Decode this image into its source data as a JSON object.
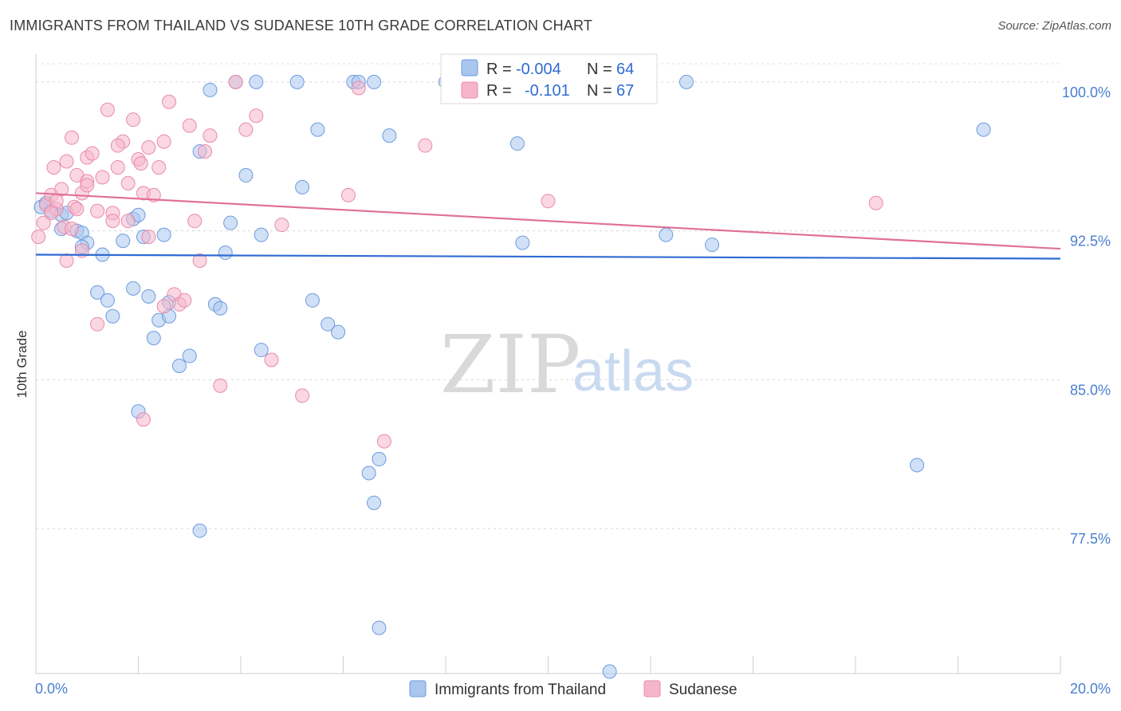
{
  "header": {
    "title": "IMMIGRANTS FROM THAILAND VS SUDANESE 10TH GRADE CORRELATION CHART",
    "source": "Source: ZipAtlas.com"
  },
  "watermark": {
    "zip": "ZIP",
    "atlas": "atlas"
  },
  "colors": {
    "blue": "#a9c6ee",
    "blue_stroke": "#6d9be0",
    "blue_line": "#2f6bd3",
    "pink": "#f5b6cb",
    "pink_stroke": "#e98aab",
    "pink_line": "#e0709a"
  },
  "chart_data": {
    "type": "scatter",
    "title": "IMMIGRANTS FROM THAILAND VS SUDANESE 10TH GRADE CORRELATION CHART",
    "xlabel": "",
    "ylabel": "10th Grade",
    "xlim": [
      0,
      20
    ],
    "ylim": [
      70.2,
      101.4
    ],
    "y_ticks": [
      77.5,
      85.0,
      92.5,
      100.0
    ],
    "y_tick_labels": [
      "77.5%",
      "85.0%",
      "92.5%",
      "100.0%"
    ],
    "x_tick_labels": [
      "0.0%",
      "20.0%"
    ],
    "legend": [
      {
        "name": "Immigrants from Thailand",
        "r_label": "R =",
        "r": "-0.004",
        "n_label": "N =",
        "n": "64"
      },
      {
        "name": "Sudanese",
        "r_label": "R =",
        "r": "-0.101",
        "n_label": "N =",
        "n": "67"
      }
    ],
    "series": [
      {
        "name": "Immigrants from Thailand",
        "trend": {
          "x": [
            0,
            20
          ],
          "y": [
            91.3,
            91.1
          ]
        },
        "points": [
          [
            0.1,
            93.7
          ],
          [
            0.2,
            93.9
          ],
          [
            0.3,
            93.5
          ],
          [
            0.5,
            93.3
          ],
          [
            0.5,
            92.6
          ],
          [
            0.8,
            92.5
          ],
          [
            0.9,
            92.4
          ],
          [
            1.0,
            91.9
          ],
          [
            1.3,
            91.3
          ],
          [
            1.2,
            89.4
          ],
          [
            1.4,
            89.0
          ],
          [
            1.5,
            88.2
          ],
          [
            1.7,
            92.0
          ],
          [
            1.9,
            89.6
          ],
          [
            1.9,
            93.1
          ],
          [
            2.0,
            93.3
          ],
          [
            2.1,
            92.2
          ],
          [
            2.2,
            89.2
          ],
          [
            2.3,
            87.1
          ],
          [
            2.4,
            88.0
          ],
          [
            2.5,
            92.3
          ],
          [
            2.6,
            88.2
          ],
          [
            2.6,
            88.9
          ],
          [
            2.8,
            85.7
          ],
          [
            3.0,
            86.2
          ],
          [
            3.2,
            96.5
          ],
          [
            3.4,
            99.6
          ],
          [
            3.5,
            88.8
          ],
          [
            3.6,
            88.6
          ],
          [
            3.7,
            91.4
          ],
          [
            3.8,
            92.9
          ],
          [
            3.9,
            100.0
          ],
          [
            4.1,
            95.3
          ],
          [
            4.4,
            92.3
          ],
          [
            4.3,
            100.0
          ],
          [
            4.4,
            86.5
          ],
          [
            5.1,
            100.0
          ],
          [
            5.2,
            94.7
          ],
          [
            5.4,
            89.0
          ],
          [
            5.5,
            97.6
          ],
          [
            5.7,
            87.8
          ],
          [
            5.9,
            87.4
          ],
          [
            6.2,
            100.0
          ],
          [
            6.3,
            100.0
          ],
          [
            6.6,
            100.0
          ],
          [
            6.5,
            80.3
          ],
          [
            6.6,
            78.8
          ],
          [
            6.7,
            81.0
          ],
          [
            6.7,
            72.5
          ],
          [
            6.9,
            97.3
          ],
          [
            8.0,
            100.0
          ],
          [
            9.4,
            96.9
          ],
          [
            9.5,
            91.9
          ],
          [
            11.4,
            100.0
          ],
          [
            12.3,
            92.3
          ],
          [
            12.7,
            100.0
          ],
          [
            13.2,
            91.8
          ],
          [
            17.2,
            80.7
          ],
          [
            18.5,
            97.6
          ],
          [
            2.0,
            83.4
          ],
          [
            3.2,
            77.4
          ],
          [
            11.2,
            70.3
          ],
          [
            0.9,
            91.7
          ],
          [
            0.6,
            93.4
          ]
        ]
      },
      {
        "name": "Sudanese",
        "trend": {
          "x": [
            0,
            20
          ],
          "y": [
            94.4,
            91.6
          ]
        },
        "points": [
          [
            0.05,
            92.2
          ],
          [
            0.15,
            92.9
          ],
          [
            0.2,
            93.8
          ],
          [
            0.3,
            94.3
          ],
          [
            0.35,
            95.7
          ],
          [
            0.4,
            93.6
          ],
          [
            0.5,
            94.6
          ],
          [
            0.55,
            92.7
          ],
          [
            0.6,
            96.0
          ],
          [
            0.7,
            97.2
          ],
          [
            0.75,
            93.7
          ],
          [
            0.8,
            95.3
          ],
          [
            0.9,
            94.4
          ],
          [
            1.0,
            95.0
          ],
          [
            1.0,
            96.2
          ],
          [
            1.1,
            96.4
          ],
          [
            1.2,
            93.5
          ],
          [
            1.3,
            95.2
          ],
          [
            1.4,
            98.6
          ],
          [
            1.5,
            93.4
          ],
          [
            1.6,
            95.7
          ],
          [
            1.7,
            97.0
          ],
          [
            1.8,
            94.9
          ],
          [
            1.9,
            98.1
          ],
          [
            2.0,
            96.1
          ],
          [
            2.05,
            95.9
          ],
          [
            2.1,
            94.4
          ],
          [
            2.2,
            96.7
          ],
          [
            2.3,
            94.3
          ],
          [
            2.4,
            95.7
          ],
          [
            2.5,
            97.0
          ],
          [
            2.6,
            99.0
          ],
          [
            2.7,
            89.3
          ],
          [
            2.8,
            88.8
          ],
          [
            2.9,
            89.0
          ],
          [
            3.0,
            97.8
          ],
          [
            3.1,
            93.0
          ],
          [
            3.2,
            91.0
          ],
          [
            3.3,
            96.5
          ],
          [
            3.4,
            97.3
          ],
          [
            3.6,
            84.7
          ],
          [
            3.9,
            100.0
          ],
          [
            4.1,
            97.6
          ],
          [
            4.3,
            98.3
          ],
          [
            4.6,
            86.0
          ],
          [
            4.8,
            92.8
          ],
          [
            5.2,
            84.2
          ],
          [
            6.1,
            94.3
          ],
          [
            6.3,
            99.7
          ],
          [
            6.8,
            81.9
          ],
          [
            7.6,
            96.8
          ],
          [
            10.0,
            94.0
          ],
          [
            16.4,
            93.9
          ],
          [
            0.9,
            91.5
          ],
          [
            1.2,
            87.8
          ],
          [
            0.6,
            91.0
          ],
          [
            2.1,
            83.0
          ],
          [
            1.8,
            93.0
          ],
          [
            2.5,
            88.7
          ],
          [
            0.4,
            94.0
          ],
          [
            1.0,
            94.8
          ],
          [
            0.3,
            93.4
          ],
          [
            1.6,
            96.8
          ],
          [
            0.7,
            92.6
          ],
          [
            2.2,
            92.2
          ],
          [
            1.5,
            93.0
          ],
          [
            0.8,
            93.6
          ]
        ]
      }
    ],
    "grid": true,
    "legend_placement": "top-center"
  }
}
